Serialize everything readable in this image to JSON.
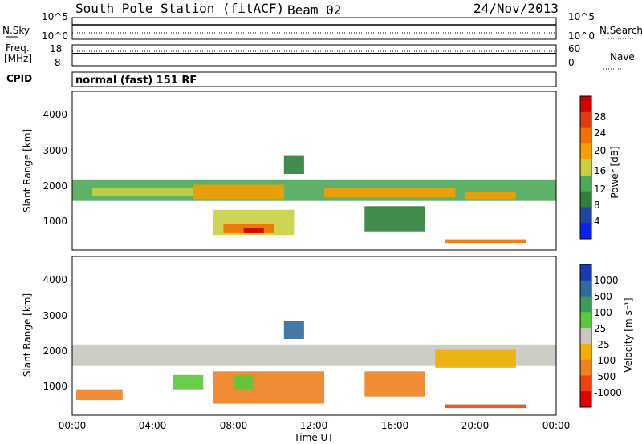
{
  "header": {
    "station": "South Pole Station (fitACF)",
    "beam": "Beam 02",
    "date": "24/Nov/2013"
  },
  "noise_panel": {
    "left_label": "N.Sky",
    "right_label": "N.Search",
    "left_ticks": [
      "10^5",
      "10^0"
    ],
    "right_ticks": [
      "10^5",
      "10^0"
    ]
  },
  "freq_panel": {
    "left_label_1": "Freq.",
    "left_label_2": "[MHz]",
    "right_label": "Nave",
    "left_ticks": [
      "18",
      "8"
    ],
    "right_ticks": [
      "60",
      "0"
    ]
  },
  "cpid": {
    "label": "CPID",
    "value": "normal (fast) 151 RF"
  },
  "time_axis": {
    "title": "Time UT",
    "ticks": [
      "00:00",
      "04:00",
      "08:00",
      "12:00",
      "16:00",
      "20:00",
      "00:00"
    ]
  },
  "chart_data": [
    {
      "type": "heatmap",
      "title": "",
      "xlabel": "Time UT",
      "ylabel": "Slant Range [km]",
      "xlim": [
        0,
        24
      ],
      "ylim": [
        180,
        4600
      ],
      "yticks": [
        "1000",
        "2000",
        "3000",
        "4000"
      ],
      "colorbar": {
        "label": "Power [dB]",
        "ticks": [
          "4",
          "8",
          "12",
          "16",
          "20",
          "24",
          "28"
        ],
        "colors": [
          "#0a22f0",
          "#2244a0",
          "#2e7f3a",
          "#4ea85a",
          "#c8d040",
          "#f5a000",
          "#f07000",
          "#e03a10",
          "#d00000"
        ]
      },
      "regions": [
        {
          "t0": 0.0,
          "t1": 24.0,
          "r0": 1550,
          "r1": 2150,
          "level": 3
        },
        {
          "t0": 1.0,
          "t1": 6.0,
          "r0": 1700,
          "r1": 1900,
          "level": 4
        },
        {
          "t0": 6.0,
          "t1": 10.5,
          "r0": 1600,
          "r1": 2000,
          "level": 5
        },
        {
          "t0": 12.5,
          "t1": 19.0,
          "r0": 1650,
          "r1": 1900,
          "level": 5
        },
        {
          "t0": 19.5,
          "t1": 22.0,
          "r0": 1600,
          "r1": 1800,
          "level": 5
        },
        {
          "t0": 7.0,
          "t1": 11.0,
          "r0": 600,
          "r1": 1300,
          "level": 4
        },
        {
          "t0": 7.5,
          "t1": 10.0,
          "r0": 650,
          "r1": 900,
          "level": 6
        },
        {
          "t0": 8.5,
          "t1": 9.5,
          "r0": 650,
          "r1": 800,
          "level": 8
        },
        {
          "t0": 10.5,
          "t1": 11.5,
          "r0": 2300,
          "r1": 2800,
          "level": 2
        },
        {
          "t0": 18.5,
          "t1": 22.5,
          "r0": 380,
          "r1": 480,
          "level": 6
        },
        {
          "t0": 14.5,
          "t1": 17.5,
          "r0": 700,
          "r1": 1400,
          "level": 2
        }
      ]
    },
    {
      "type": "heatmap",
      "title": "",
      "xlabel": "Time UT",
      "ylabel": "Slant Range [km]",
      "xlim": [
        0,
        24
      ],
      "ylim": [
        180,
        4600
      ],
      "yticks": [
        "1000",
        "2000",
        "3000",
        "4000"
      ],
      "colorbar": {
        "label": "Velocity [m s⁻¹]",
        "ticks": [
          "1000",
          "500",
          "100",
          "25",
          "-25",
          "-100",
          "-500",
          "-1000"
        ],
        "colors": [
          "#1a3ab0",
          "#2f6a9a",
          "#3a9a5a",
          "#5ac83a",
          "#c8c8c0",
          "#f0b000",
          "#f08020",
          "#f04010",
          "#e00000"
        ]
      },
      "regions": [
        {
          "t0": 0.0,
          "t1": 24.0,
          "r0": 1550,
          "r1": 2150,
          "level": 4
        },
        {
          "t0": 7.0,
          "t1": 12.5,
          "r0": 500,
          "r1": 1400,
          "level": 6
        },
        {
          "t0": 8.0,
          "t1": 9.0,
          "r0": 900,
          "r1": 1300,
          "level": 3
        },
        {
          "t0": 5.0,
          "t1": 6.5,
          "r0": 900,
          "r1": 1300,
          "level": 3
        },
        {
          "t0": 0.2,
          "t1": 2.5,
          "r0": 600,
          "r1": 900,
          "level": 6
        },
        {
          "t0": 18.5,
          "t1": 22.5,
          "r0": 380,
          "r1": 480,
          "level": 7
        },
        {
          "t0": 14.5,
          "t1": 17.5,
          "r0": 700,
          "r1": 1400,
          "level": 6
        },
        {
          "t0": 10.5,
          "t1": 11.5,
          "r0": 2300,
          "r1": 2800,
          "level": 1
        },
        {
          "t0": 18.0,
          "t1": 22.0,
          "r0": 1500,
          "r1": 2000,
          "level": 5
        }
      ]
    }
  ]
}
